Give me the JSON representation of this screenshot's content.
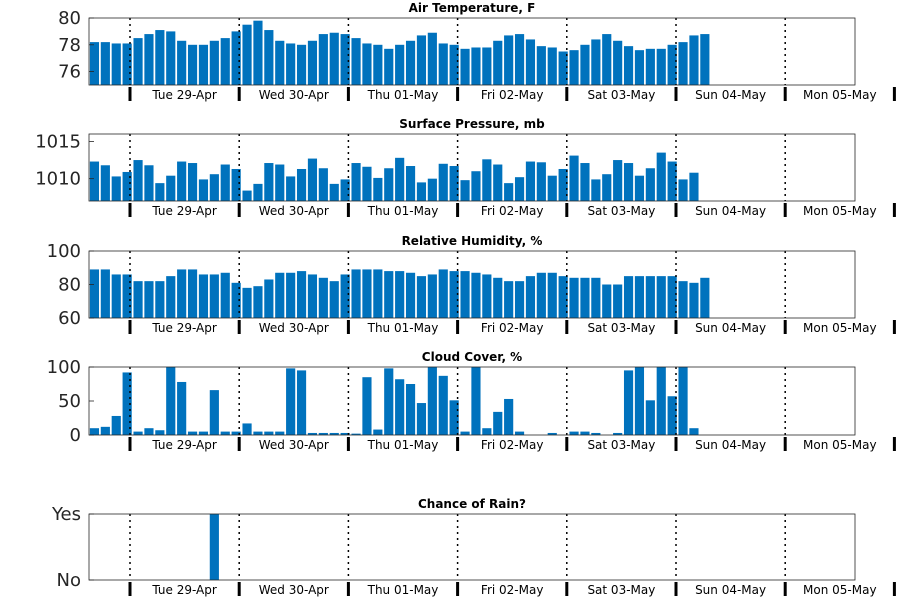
{
  "days": [
    "Tue 29-Apr",
    "Wed 30-Apr",
    "Thu 01-May",
    "Fri 02-May",
    "Sat 03-May",
    "Sun 04-May",
    "Mon 05-May"
  ],
  "bar_color": "#0072bd",
  "chart_data": [
    {
      "type": "bar",
      "title": "Air Temperature, F",
      "ylim": [
        75,
        80
      ],
      "yticks": [
        76,
        78,
        80
      ],
      "values": [
        78.2,
        78.2,
        78.1,
        78.1,
        78.5,
        78.8,
        79.1,
        79.0,
        78.3,
        78.0,
        78.0,
        78.3,
        78.5,
        79.0,
        79.5,
        79.8,
        79.1,
        78.3,
        78.1,
        78.0,
        78.3,
        78.8,
        78.9,
        78.8,
        78.5,
        78.1,
        78.0,
        77.7,
        78.0,
        78.3,
        78.7,
        78.9,
        78.1,
        78.0,
        77.7,
        77.8,
        77.8,
        78.3,
        78.7,
        78.8,
        78.4,
        77.9,
        77.8,
        77.5,
        77.6,
        78.0,
        78.4,
        78.8,
        78.3,
        77.9,
        77.6,
        77.7,
        77.7,
        78.0,
        78.2,
        78.7,
        78.8
      ]
    },
    {
      "type": "bar",
      "title": "Surface Pressure, mb",
      "ylim": [
        1007,
        1016
      ],
      "yticks": [
        1010,
        1015
      ],
      "values": [
        1012.3,
        1011.8,
        1010.3,
        1010.9,
        1012.5,
        1011.8,
        1009.4,
        1010.4,
        1012.3,
        1012.1,
        1009.9,
        1010.6,
        1011.9,
        1011.3,
        1008.4,
        1009.3,
        1012.1,
        1011.9,
        1010.3,
        1011.3,
        1012.7,
        1011.4,
        1009.3,
        1009.9,
        1012.1,
        1011.6,
        1010.1,
        1011.4,
        1012.8,
        1011.7,
        1009.5,
        1010.0,
        1012.0,
        1011.7,
        1009.8,
        1011.0,
        1012.6,
        1011.9,
        1009.4,
        1010.2,
        1012.3,
        1012.2,
        1010.4,
        1011.3,
        1013.1,
        1012.1,
        1009.9,
        1010.6,
        1012.5,
        1012.1,
        1010.4,
        1011.4,
        1013.5,
        1012.3,
        1009.9,
        1010.8
      ]
    },
    {
      "type": "bar",
      "title": "Relative Humidity, %",
      "ylim": [
        60,
        100
      ],
      "yticks": [
        60,
        80,
        100
      ],
      "values": [
        89,
        89,
        86,
        86,
        82,
        82,
        82,
        85,
        89,
        89,
        86,
        86,
        87,
        81,
        78,
        79,
        83,
        87,
        87,
        88,
        86,
        84,
        82,
        86,
        89,
        89,
        89,
        88,
        88,
        87,
        85,
        86,
        89,
        88,
        88,
        87,
        86,
        84,
        82,
        82,
        85,
        87,
        87,
        85,
        84,
        84,
        84,
        80,
        80,
        85,
        85,
        85,
        85,
        85,
        82,
        81,
        84
      ]
    },
    {
      "type": "bar",
      "title": "Cloud Cover, %",
      "ylim": [
        0,
        100
      ],
      "yticks": [
        0,
        50,
        100
      ],
      "values": [
        10,
        12,
        28,
        92,
        5,
        10,
        7,
        100,
        78,
        5,
        5,
        66,
        5,
        5,
        17,
        5,
        5,
        5,
        98,
        95,
        3,
        3,
        3,
        3,
        2,
        85,
        8,
        98,
        82,
        75,
        47,
        100,
        87,
        51,
        5,
        100,
        10,
        34,
        53,
        5,
        0,
        0,
        3,
        0,
        5,
        5,
        3,
        0,
        3,
        95,
        100,
        51,
        100,
        57,
        100,
        10
      ]
    },
    {
      "type": "bar",
      "title": "Chance of Rain?",
      "ylim": [
        0,
        1
      ],
      "yticks": [
        0,
        1
      ],
      "yticklabels": [
        "No",
        "Yes"
      ],
      "values": [
        0,
        0,
        0,
        0,
        0,
        0,
        0,
        0,
        0,
        0,
        0,
        1,
        0,
        0,
        0,
        0,
        0,
        0,
        0,
        0,
        0,
        0,
        0,
        0,
        0,
        0,
        0,
        0,
        0,
        0,
        0,
        0,
        0,
        0,
        0,
        0,
        0,
        0,
        0,
        0,
        0,
        0,
        0,
        0,
        0,
        0,
        0,
        0,
        0,
        0,
        0,
        0,
        0,
        0,
        0,
        0,
        0,
        0,
        0
      ]
    }
  ]
}
